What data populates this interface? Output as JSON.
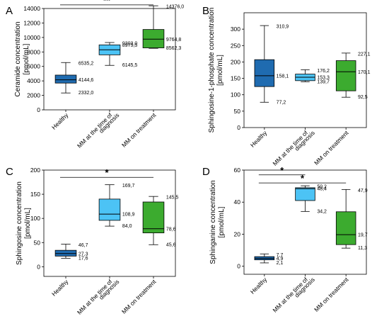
{
  "chart_data": [
    {
      "type": "box",
      "panel": "A",
      "ylabel": [
        "Ceramide concentration",
        "[pmol/mL]"
      ],
      "ylim": [
        0,
        14000
      ],
      "yticks": [
        0,
        2000,
        4000,
        6000,
        8000,
        10000,
        12000,
        14000
      ],
      "categories": [
        [
          "Healthy"
        ],
        [
          "MM at the time of",
          "diagnosis"
        ],
        [
          "MM on treatment"
        ]
      ],
      "colors": [
        "#1f6bb0",
        "#4cc3f5",
        "#3cab2f"
      ],
      "boxes": [
        {
          "min": 2332.0,
          "q1": 3700,
          "median": 4144.6,
          "q3": 4800,
          "max": 6535.2,
          "labels": {
            "max": "6535,2",
            "median": "4144,6",
            "min": "2332,0"
          }
        },
        {
          "min": 6145.5,
          "q1": 7600,
          "median": 8300,
          "q3": 8975.5,
          "max": 9303.0,
          "labels": {
            "max": "9303,0",
            "q3": "8975,5",
            "min": "6145,5"
          }
        },
        {
          "min": 8500,
          "q1": 8562.3,
          "median": 9764.8,
          "q3": 11100,
          "max": 14376.0,
          "labels": {
            "max": "14376,0",
            "median": "9764,8",
            "q1": "8562,3"
          }
        }
      ],
      "significance": [
        {
          "from": 0,
          "to": 2,
          "label": "**",
          "y": 14500
        }
      ]
    },
    {
      "type": "box",
      "panel": "B",
      "ylabel": [
        "Sphingosine-1-phosphate concentration",
        "[pmol/mL]"
      ],
      "ylim": [
        0,
        350
      ],
      "yticks": [
        0,
        50,
        100,
        150,
        200,
        250,
        300
      ],
      "categories": [
        [
          "Healthy"
        ],
        [
          "MM at the time of",
          "diagnosis"
        ],
        [
          "MM on treatment"
        ]
      ],
      "colors": [
        "#1f6bb0",
        "#4cc3f5",
        "#3cab2f"
      ],
      "boxes": [
        {
          "min": 77.2,
          "q1": 125,
          "median": 158.1,
          "q3": 207,
          "max": 310.9,
          "labels": {
            "max": "310,9",
            "median": "158,1",
            "min": "77,2"
          }
        },
        {
          "min": 139.7,
          "q1": 143,
          "median": 153.3,
          "q3": 163,
          "max": 176.2,
          "labels": {
            "max": "176,2",
            "median": "153,3",
            "min": "139,7"
          }
        },
        {
          "min": 92.5,
          "q1": 112,
          "median": 170.1,
          "q3": 204,
          "max": 227.1,
          "labels": {
            "max": "227,1",
            "median": "170,1",
            "min": "92,5"
          }
        }
      ],
      "significance": []
    },
    {
      "type": "box",
      "panel": "C",
      "ylabel": [
        "Sphingosine concentration",
        "[pmol/mL]"
      ],
      "ylim": [
        -20,
        200
      ],
      "yticks": [
        0,
        50,
        100,
        150,
        200
      ],
      "categories": [
        [
          "Healthy"
        ],
        [
          "MM at the time of",
          "diagnosis"
        ],
        [
          "MM on treatment"
        ]
      ],
      "colors": [
        "#1f6bb0",
        "#4cc3f5",
        "#3cab2f"
      ],
      "boxes": [
        {
          "min": 17.6,
          "q1": 22,
          "median": 27.3,
          "q3": 34,
          "max": 46.7,
          "labels": {
            "max": "46,7",
            "median": "27,3",
            "min": "17,6"
          }
        },
        {
          "min": 84.0,
          "q1": 96,
          "median": 108.9,
          "q3": 140,
          "max": 169.7,
          "labels": {
            "max": "169,7",
            "median": "108,9",
            "min": "84,0"
          }
        },
        {
          "min": 45.6,
          "q1": 70,
          "median": 78.6,
          "q3": 134,
          "max": 145.5,
          "labels": {
            "max": "145,5",
            "median": "78,6",
            "min": "45,6"
          }
        }
      ],
      "significance": [
        {
          "from": 0,
          "to": 2,
          "label": "*",
          "y": 185
        }
      ]
    },
    {
      "type": "box",
      "panel": "D",
      "ylabel": [
        "Sphinganine concentration",
        "[pmol/mL]"
      ],
      "ylim": [
        -5,
        60
      ],
      "yticks": [
        0,
        20,
        40,
        60
      ],
      "categories": [
        [
          "Healthy"
        ],
        [
          "MM at the time of",
          "diagnosis"
        ],
        [
          "MM on treatment"
        ]
      ],
      "colors": [
        "#1f6bb0",
        "#4cc3f5",
        "#3cab2f"
      ],
      "boxes": [
        {
          "min": 2.1,
          "q1": 4,
          "median": 4.9,
          "q3": 6,
          "max": 7.7,
          "labels": {
            "max": "7,7",
            "median": "4,9",
            "min": "2,1"
          }
        },
        {
          "min": 34.2,
          "q1": 41,
          "median": 48.4,
          "q3": 49,
          "max": 50.2,
          "labels": {
            "max": "50,2",
            "median": "48,4",
            "min": "34,2"
          }
        },
        {
          "min": 11.3,
          "q1": 13.5,
          "median": 19.7,
          "q3": 34,
          "max": 47.9,
          "labels": {
            "max": "47,9",
            "median": "19,7",
            "min": "11,3"
          }
        }
      ],
      "significance": [
        {
          "from": 0,
          "to": 1,
          "label": "*",
          "y": 57
        },
        {
          "from": 0,
          "to": 2,
          "label": "*",
          "y": 52
        }
      ]
    }
  ]
}
